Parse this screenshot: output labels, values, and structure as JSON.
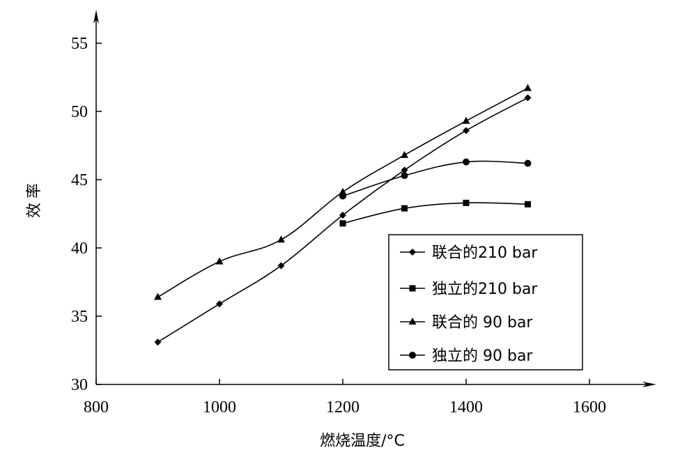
{
  "chart_data": {
    "type": "line",
    "xlabel": "燃烧温度/°C",
    "ylabel": "效率",
    "xlim": [
      800,
      1700
    ],
    "ylim": [
      30,
      57
    ],
    "x_ticks": [
      800,
      1000,
      1200,
      1400,
      1600
    ],
    "y_ticks": [
      30,
      35,
      40,
      45,
      50,
      55
    ],
    "legend_position": "bottom-right",
    "grid": false,
    "series": [
      {
        "name": "联合的210 bar",
        "marker": "diamond",
        "x": [
          900,
          1000,
          1100,
          1200,
          1300,
          1400,
          1500
        ],
        "y": [
          33.1,
          35.9,
          38.7,
          42.4,
          45.7,
          48.6,
          51.0
        ]
      },
      {
        "name": "独立的210 bar",
        "marker": "square",
        "x": [
          1200,
          1300,
          1400,
          1500
        ],
        "y": [
          41.8,
          42.9,
          43.3,
          43.2
        ]
      },
      {
        "name": "联合的 90 bar",
        "marker": "triangle",
        "x": [
          900,
          1000,
          1100,
          1200,
          1300,
          1400,
          1500
        ],
        "y": [
          36.4,
          39.0,
          40.6,
          44.1,
          46.8,
          49.3,
          51.7
        ]
      },
      {
        "name": "独立的 90 bar",
        "marker": "circle",
        "x": [
          1200,
          1300,
          1400,
          1500
        ],
        "y": [
          43.8,
          45.3,
          46.3,
          46.2
        ]
      }
    ]
  }
}
